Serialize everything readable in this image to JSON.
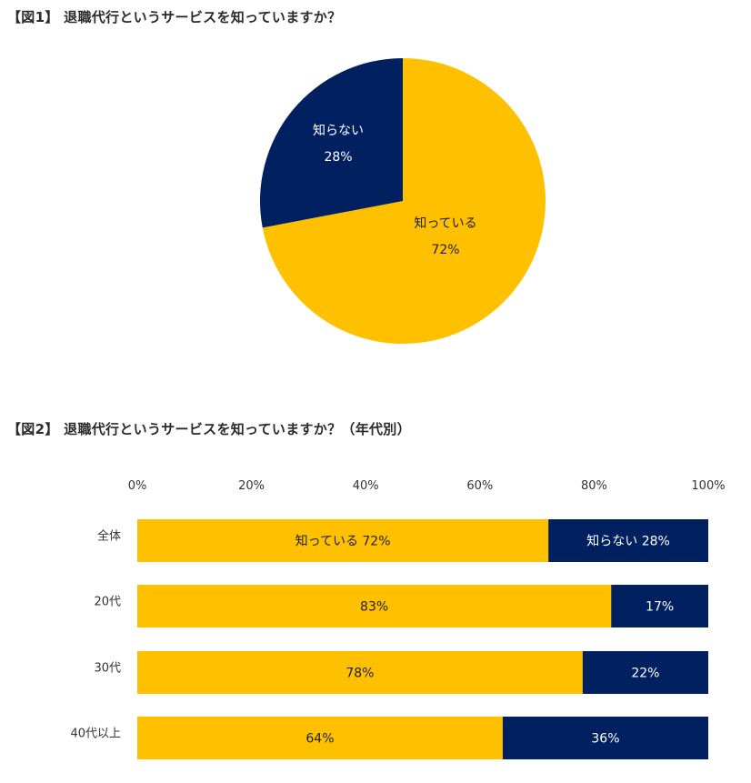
{
  "chart_data": [
    {
      "type": "pie",
      "title": "【図1】 退職代行というサービスを知っていますか？",
      "slices": [
        {
          "label": "知っている",
          "value": 72,
          "value_label": "72%",
          "color": "#FFC000"
        },
        {
          "label": "知らない",
          "value": 28,
          "value_label": "28%",
          "color": "#002060"
        }
      ]
    },
    {
      "type": "bar",
      "orientation": "horizontal",
      "stacked": true,
      "title": "【図2】 退職代行というサービスを知っていますか？（年代別）",
      "xlim": [
        0,
        100
      ],
      "x_ticks": [
        "0%",
        "20%",
        "40%",
        "60%",
        "80%",
        "100%"
      ],
      "categories": [
        "全体",
        "20代",
        "30代",
        "40代以上"
      ],
      "series": [
        {
          "name": "知っている",
          "color": "#FFC000",
          "values": [
            72,
            83,
            78,
            64
          ],
          "labels": [
            "知っている 72%",
            "83%",
            "78%",
            "64%"
          ]
        },
        {
          "name": "知らない",
          "color": "#002060",
          "values": [
            28,
            17,
            22,
            36
          ],
          "labels": [
            "知らない 28%",
            "17%",
            "22%",
            "36%"
          ]
        }
      ]
    }
  ]
}
